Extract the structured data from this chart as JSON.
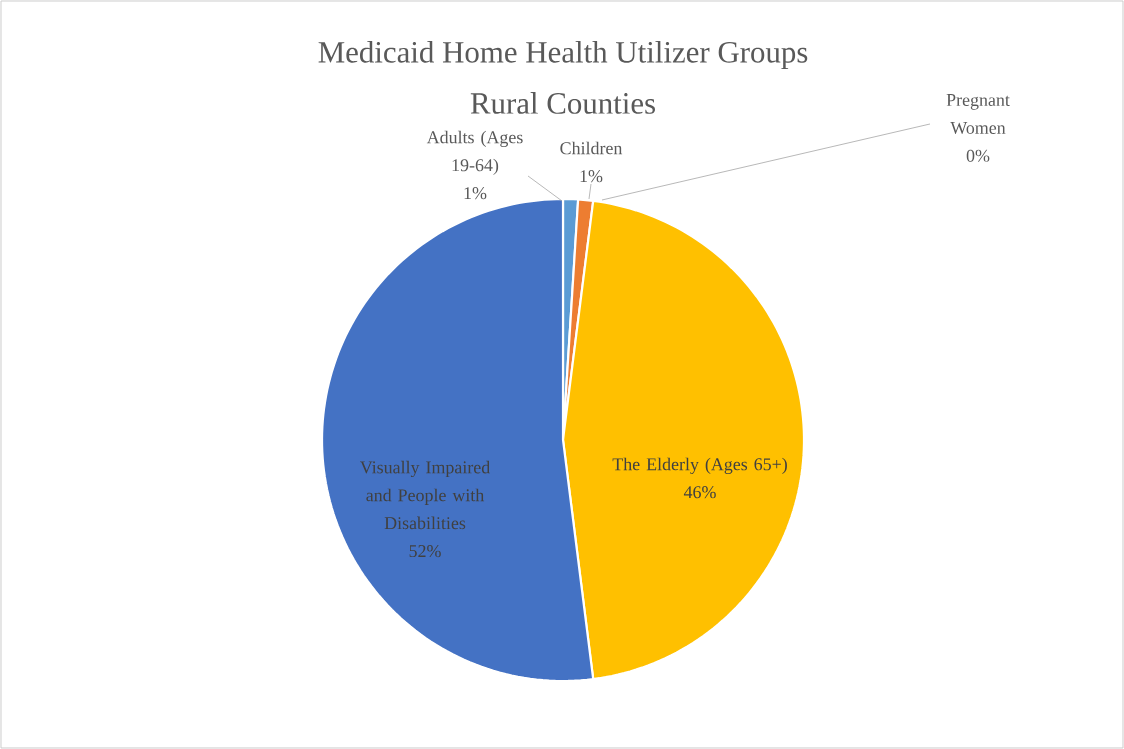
{
  "chart_data": {
    "type": "pie",
    "title": "Medicaid Home Health Utilizer Groups",
    "subtitle": "Rural Counties",
    "categories": [
      "Adults (Ages 19-64)",
      "Children",
      "Pregnant Women",
      "The Elderly (Ages 65+)",
      "Visually Impaired and People with Disabilities"
    ],
    "values": [
      1,
      1,
      0,
      46,
      52
    ],
    "colors": [
      "#5b9bd5",
      "#ed7d31",
      "#a5a5a5",
      "#ffc000",
      "#4472c4"
    ],
    "value_labels": [
      "1%",
      "1%",
      "0%",
      "46%",
      "52%"
    ]
  }
}
